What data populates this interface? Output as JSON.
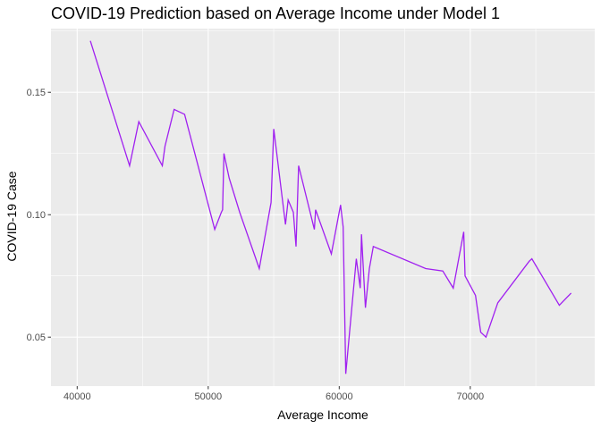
{
  "chart_data": {
    "type": "line",
    "title": "COVID-19 Prediction based on Average Income under Model 1",
    "xlabel": "Average Income",
    "ylabel": "COVID-19 Case",
    "xlim": [
      38000,
      79500
    ],
    "ylim": [
      0.03,
      0.176
    ],
    "x_ticks": [
      40000,
      50000,
      60000,
      70000
    ],
    "x_tick_labels": [
      "40000",
      "50000",
      "60000",
      "70000"
    ],
    "y_ticks": [
      0.05,
      0.1,
      0.15
    ],
    "y_tick_labels": [
      "0.05",
      "0.10",
      "0.15"
    ],
    "grid": true,
    "colors": {
      "panel": "#ebebeb",
      "grid": "#ffffff",
      "line": "#a020f0",
      "tick": "#333333"
    },
    "series": [
      {
        "x": [
          41000,
          44000,
          44700,
          46500,
          46700,
          47400,
          48200,
          50500,
          51000,
          51100,
          51200,
          51600,
          52400,
          53900,
          54800,
          55000,
          55900,
          56100,
          56500,
          56700,
          56900,
          58100,
          58200,
          59400,
          60100,
          60300,
          60500,
          61300,
          61600,
          61700,
          62000,
          62300,
          62600,
          66600,
          67900,
          68700,
          69500,
          69600,
          70400,
          70800,
          71200,
          72100,
          74500,
          74700,
          76800,
          77700
        ],
        "y": [
          0.171,
          0.12,
          0.138,
          0.12,
          0.128,
          0.143,
          0.141,
          0.094,
          0.101,
          0.102,
          0.125,
          0.115,
          0.101,
          0.078,
          0.105,
          0.135,
          0.096,
          0.106,
          0.101,
          0.087,
          0.12,
          0.094,
          0.102,
          0.084,
          0.104,
          0.095,
          0.035,
          0.082,
          0.07,
          0.092,
          0.062,
          0.078,
          0.087,
          0.078,
          0.077,
          0.07,
          0.093,
          0.075,
          0.067,
          0.052,
          0.05,
          0.064,
          0.081,
          0.082,
          0.063,
          0.068
        ]
      }
    ]
  }
}
